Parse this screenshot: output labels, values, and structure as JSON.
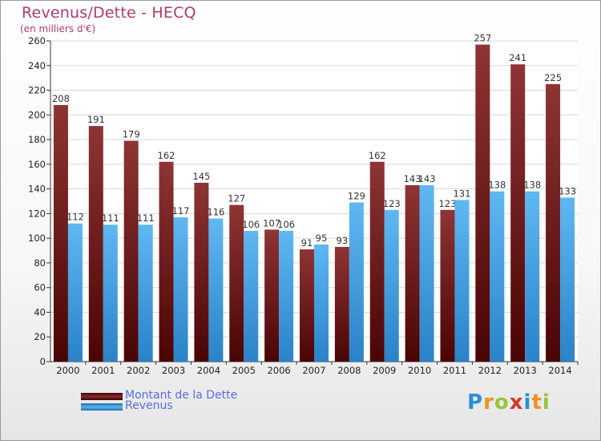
{
  "chart_data": {
    "type": "bar",
    "title": "Revenus/Dette - HECQ",
    "subtitle": "(en milliers d'€)",
    "categories": [
      "2000",
      "2001",
      "2002",
      "2003",
      "2004",
      "2005",
      "2006",
      "2007",
      "2008",
      "2009",
      "2010",
      "2011",
      "2012",
      "2013",
      "2014"
    ],
    "series": [
      {
        "name": "Montant de la Dette",
        "color": "#7a1c1c",
        "values": [
          208,
          191,
          179,
          162,
          145,
          127,
          107,
          91,
          93,
          162,
          143,
          123,
          257,
          241,
          225
        ]
      },
      {
        "name": "Revenus",
        "color": "#3f9fe0",
        "values": [
          112,
          111,
          111,
          117,
          116,
          106,
          106,
          95,
          129,
          123,
          143,
          131,
          138,
          138,
          133
        ]
      }
    ],
    "ylim": [
      0,
      260
    ],
    "yticks": [
      0,
      20,
      40,
      60,
      80,
      100,
      120,
      140,
      160,
      180,
      200,
      220,
      240,
      260
    ],
    "grid": true,
    "legend_position": "bottom-left"
  },
  "brand": {
    "letters": [
      "P",
      "r",
      "o",
      "x",
      "i",
      "t",
      "i"
    ],
    "colors": [
      "#2a8fd8",
      "#e8951c",
      "#9ac43a",
      "#d63a2a",
      "#2a8fd8",
      "#e8951c",
      "#9ac43a"
    ]
  }
}
